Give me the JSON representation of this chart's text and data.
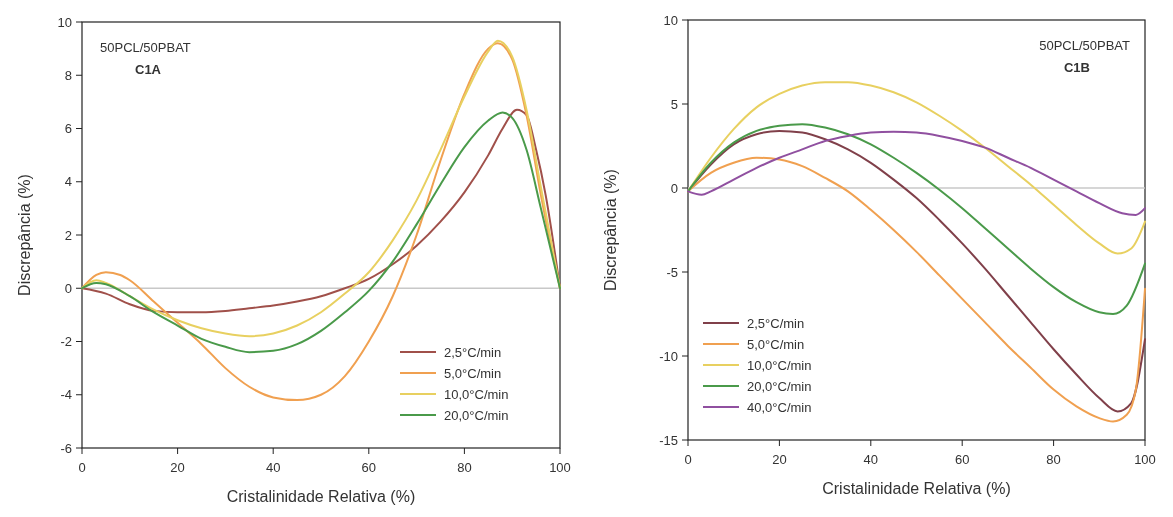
{
  "chart_data": [
    {
      "type": "line",
      "xlabel": "Cristalinidade Relativa (%)",
      "ylabel": "Discrepância (%)",
      "annotations": [
        "50PCL/50PBAT",
        "C1A"
      ],
      "xlim": [
        0,
        100
      ],
      "xticks": [
        0,
        20,
        40,
        60,
        80,
        100
      ],
      "ylim": [
        -6,
        10
      ],
      "yticks": [
        -6,
        -4,
        -2,
        0,
        2,
        4,
        6,
        8,
        10
      ],
      "grid": false,
      "legend": "bottom right",
      "marker": "none",
      "line_style": "solid",
      "ref_lines": [
        {
          "axis": "y",
          "value": 0,
          "color": "#c8c8c8"
        }
      ],
      "series": [
        {
          "name": "2,5°C/min",
          "color": "#a0504a",
          "x": [
            0,
            5,
            10,
            15,
            20,
            25,
            30,
            35,
            40,
            45,
            50,
            55,
            60,
            65,
            70,
            75,
            80,
            85,
            88,
            91,
            93,
            95,
            97,
            100
          ],
          "values": [
            0,
            -0.2,
            -0.6,
            -0.85,
            -0.9,
            -0.9,
            -0.85,
            -0.75,
            -0.65,
            -0.5,
            -0.3,
            0,
            0.35,
            0.9,
            1.6,
            2.5,
            3.6,
            5.0,
            6.0,
            6.7,
            6.5,
            5.2,
            3.5,
            0
          ]
        },
        {
          "name": "5,0°C/min",
          "color": "#f0a050",
          "x": [
            0,
            3,
            5,
            8,
            10,
            15,
            20,
            25,
            30,
            35,
            40,
            45,
            50,
            55,
            60,
            65,
            70,
            75,
            80,
            85,
            87,
            90,
            93,
            96,
            100
          ],
          "values": [
            0,
            0.5,
            0.6,
            0.5,
            0.3,
            -0.5,
            -1.3,
            -2.1,
            -3.0,
            -3.7,
            -4.1,
            -4.2,
            -4.0,
            -3.3,
            -2.0,
            -0.3,
            2.0,
            4.8,
            7.3,
            9.0,
            9.2,
            8.6,
            6.5,
            3.5,
            0
          ]
        },
        {
          "name": "10,0°C/min",
          "color": "#e8d060",
          "x": [
            0,
            3,
            5,
            10,
            15,
            20,
            25,
            30,
            35,
            40,
            45,
            50,
            55,
            60,
            65,
            70,
            75,
            80,
            85,
            87,
            90,
            93,
            96,
            100
          ],
          "values": [
            0,
            0.3,
            0.2,
            -0.3,
            -0.8,
            -1.2,
            -1.5,
            -1.7,
            -1.8,
            -1.7,
            -1.4,
            -0.9,
            -0.2,
            0.6,
            1.8,
            3.3,
            5.2,
            7.2,
            8.9,
            9.3,
            8.7,
            6.7,
            3.8,
            0
          ]
        },
        {
          "name": "20,0°C/min",
          "color": "#4a9a4a",
          "x": [
            0,
            3,
            5,
            10,
            15,
            20,
            25,
            30,
            35,
            40,
            45,
            50,
            55,
            60,
            65,
            70,
            75,
            80,
            85,
            88,
            90,
            93,
            96,
            100
          ],
          "values": [
            0,
            0.2,
            0.15,
            -0.3,
            -0.9,
            -1.4,
            -1.9,
            -2.2,
            -2.4,
            -2.35,
            -2.1,
            -1.6,
            -0.9,
            -0.1,
            1.0,
            2.4,
            3.9,
            5.3,
            6.3,
            6.6,
            6.4,
            5.2,
            3.0,
            0
          ]
        }
      ]
    },
    {
      "type": "line",
      "xlabel": "Cristalinidade Relativa (%)",
      "ylabel": "Discrepância (%)",
      "annotations": [
        "50PCL/50PBAT",
        "C1B"
      ],
      "xlim": [
        0,
        100
      ],
      "xticks": [
        0,
        20,
        40,
        60,
        80,
        100
      ],
      "ylim": [
        -15,
        10
      ],
      "yticks": [
        -15,
        -10,
        -5,
        0,
        5,
        10
      ],
      "grid": false,
      "legend": "bottom left",
      "marker": "none",
      "line_style": "solid",
      "ref_lines": [
        {
          "axis": "y",
          "value": 0,
          "color": "#c8c8c8"
        }
      ],
      "series": [
        {
          "name": "2,5°C/min",
          "color": "#80404a",
          "x": [
            0,
            5,
            10,
            15,
            20,
            25,
            30,
            35,
            40,
            45,
            50,
            55,
            60,
            65,
            70,
            75,
            80,
            85,
            90,
            94,
            97,
            100
          ],
          "values": [
            -0.2,
            1.4,
            2.6,
            3.2,
            3.4,
            3.3,
            2.9,
            2.3,
            1.5,
            0.5,
            -0.6,
            -1.9,
            -3.3,
            -4.8,
            -6.4,
            -8.0,
            -9.6,
            -11.1,
            -12.5,
            -13.3,
            -12.8,
            -9
          ]
        },
        {
          "name": "5,0°C/min",
          "color": "#f0a050",
          "x": [
            0,
            5,
            10,
            15,
            20,
            25,
            30,
            35,
            40,
            45,
            50,
            55,
            60,
            65,
            70,
            75,
            80,
            85,
            90,
            93,
            96,
            98,
            100
          ],
          "values": [
            -0.2,
            0.9,
            1.5,
            1.8,
            1.7,
            1.3,
            0.6,
            -0.2,
            -1.3,
            -2.5,
            -3.8,
            -5.2,
            -6.6,
            -8.0,
            -9.4,
            -10.7,
            -12.0,
            -13.0,
            -13.7,
            -13.9,
            -13.5,
            -12,
            -6
          ]
        },
        {
          "name": "10,0°C/min",
          "color": "#e8d060",
          "x": [
            0,
            5,
            10,
            15,
            20,
            25,
            30,
            35,
            40,
            45,
            50,
            55,
            60,
            65,
            70,
            75,
            80,
            85,
            90,
            94,
            97,
            100
          ],
          "values": [
            -0.2,
            1.8,
            3.5,
            4.8,
            5.6,
            6.1,
            6.3,
            6.3,
            6.1,
            5.7,
            5.1,
            4.3,
            3.4,
            2.4,
            1.3,
            0.2,
            -1.0,
            -2.2,
            -3.3,
            -3.9,
            -3.6,
            -2
          ]
        },
        {
          "name": "20,0°C/min",
          "color": "#4a9a4a",
          "x": [
            0,
            5,
            10,
            15,
            20,
            25,
            30,
            35,
            40,
            45,
            50,
            55,
            60,
            65,
            70,
            75,
            80,
            85,
            90,
            93,
            96,
            100
          ],
          "values": [
            -0.2,
            1.5,
            2.7,
            3.4,
            3.7,
            3.8,
            3.6,
            3.2,
            2.6,
            1.8,
            0.9,
            -0.1,
            -1.2,
            -2.4,
            -3.6,
            -4.8,
            -5.9,
            -6.8,
            -7.4,
            -7.5,
            -7.0,
            -4.5
          ]
        },
        {
          "name": "40,0°C/min",
          "color": "#9050a0",
          "x": [
            0,
            3,
            5,
            10,
            15,
            20,
            25,
            30,
            35,
            40,
            45,
            50,
            55,
            60,
            65,
            70,
            75,
            80,
            85,
            90,
            95,
            98,
            100
          ],
          "values": [
            -0.2,
            -0.4,
            -0.2,
            0.5,
            1.2,
            1.8,
            2.3,
            2.8,
            3.1,
            3.3,
            3.35,
            3.3,
            3.1,
            2.8,
            2.4,
            1.8,
            1.2,
            0.5,
            -0.2,
            -0.9,
            -1.5,
            -1.6,
            -1.2
          ]
        }
      ]
    }
  ]
}
